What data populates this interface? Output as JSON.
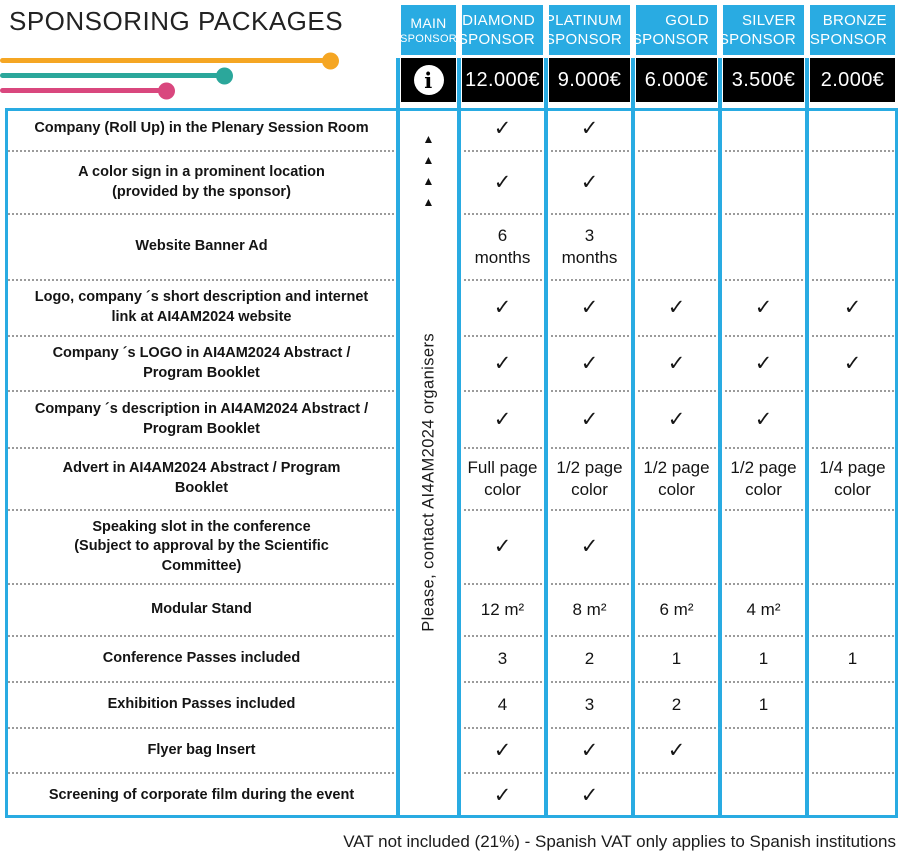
{
  "title": "SPONSORING PACKAGES",
  "columns": [
    {
      "id": "main",
      "line1": "MAIN",
      "line2": "SPONSOR",
      "price": "info-icon"
    },
    {
      "id": "diamond",
      "line1": "DIAMOND",
      "line2": "SPONSOR",
      "price": "12.000€"
    },
    {
      "id": "platinum",
      "line1": "PLATINUM",
      "line2": "SPONSOR",
      "price": "9.000€"
    },
    {
      "id": "gold",
      "line1": "GOLD",
      "line2": "SPONSOR",
      "price": "6.000€"
    },
    {
      "id": "silver",
      "line1": "SILVER",
      "line2": "SPONSOR",
      "price": "3.500€"
    },
    {
      "id": "bronze",
      "line1": "BRONZE",
      "line2": "SPONSOR",
      "price": "2.000€"
    }
  ],
  "main_column": {
    "triangles": [
      "▲",
      "▲",
      "▲",
      "▲"
    ],
    "note": "Please, contact AI4AM2024 organisers"
  },
  "rows": [
    {
      "label": "Company (Roll Up) in the Plenary Session Room",
      "cells": [
        "check",
        "check",
        "",
        "",
        ""
      ]
    },
    {
      "label": "A color sign in a prominent location\n(provided by the sponsor)",
      "cells": [
        "check",
        "check",
        "",
        "",
        ""
      ]
    },
    {
      "label": "Website Banner Ad",
      "cells": [
        "6\nmonths",
        "3\nmonths",
        "",
        "",
        ""
      ]
    },
    {
      "label": "Logo, company ´s short description and internet\nlink at AI4AM2024 website",
      "cells": [
        "check",
        "check",
        "check",
        "check",
        "check"
      ]
    },
    {
      "label": "Company ´s LOGO in AI4AM2024 Abstract /\nProgram Booklet",
      "cells": [
        "check",
        "check",
        "check",
        "check",
        "check"
      ]
    },
    {
      "label": "Company ´s description in AI4AM2024 Abstract /\nProgram Booklet",
      "cells": [
        "check",
        "check",
        "check",
        "check",
        ""
      ]
    },
    {
      "label": "Advert in AI4AM2024 Abstract / Program\nBooklet",
      "cells": [
        "Full page\ncolor",
        "1/2 page\ncolor",
        "1/2 page\ncolor",
        "1/2 page\ncolor",
        "1/4 page\ncolor"
      ]
    },
    {
      "label": "Speaking slot in the conference\n(Subject to approval by the Scientific\nCommittee)",
      "cells": [
        "check",
        "check",
        "",
        "",
        ""
      ]
    },
    {
      "label": "Modular Stand",
      "cells": [
        "12 m²",
        "8 m²",
        "6 m²",
        "4 m²",
        ""
      ]
    },
    {
      "label": "Conference Passes included",
      "cells": [
        "3",
        "2",
        "1",
        "1",
        "1"
      ]
    },
    {
      "label": "Exhibition Passes included",
      "cells": [
        "4",
        "3",
        "2",
        "1",
        ""
      ]
    },
    {
      "label": "Flyer bag Insert",
      "cells": [
        "check",
        "check",
        "check",
        "",
        ""
      ]
    },
    {
      "label": "Screening of corporate film during the event",
      "cells": [
        "check",
        "check",
        "",
        "",
        ""
      ]
    }
  ],
  "footer": "VAT not included (21%) - Spanish VAT only applies to Spanish institutions",
  "icons": {
    "info": "i",
    "check": "✓"
  },
  "colors": {
    "cyan": "#29ABE2",
    "black": "#000000",
    "text": "#1B1B1B",
    "orange": "#F5A623",
    "teal": "#2BA79B",
    "pink": "#D9477E"
  }
}
